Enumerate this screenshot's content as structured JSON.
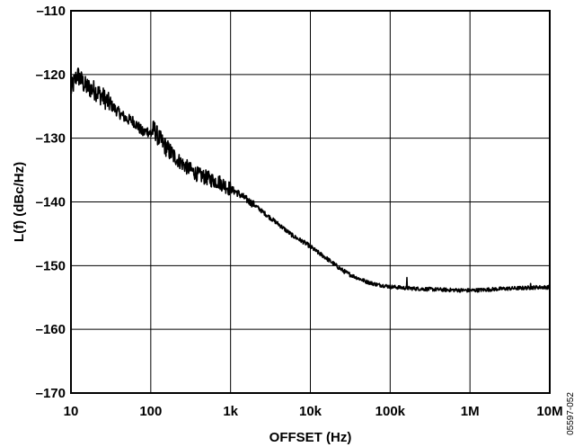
{
  "chart_data": {
    "type": "line",
    "xlabel": "OFFSET (Hz)",
    "ylabel": "L(f) (dBc/Hz)",
    "x_scale": "log",
    "xlim": [
      10,
      10000000
    ],
    "ylim": [
      -170,
      -110
    ],
    "grid": true,
    "x_ticks": [
      10,
      100,
      1000,
      10000,
      100000,
      1000000,
      10000000
    ],
    "x_tick_labels": [
      "10",
      "100",
      "1k",
      "10k",
      "100k",
      "1M",
      "10M"
    ],
    "y_ticks": [
      -170,
      -160,
      -150,
      -140,
      -130,
      -120,
      -110
    ],
    "y_tick_labels": [
      "–170",
      "–160",
      "–150",
      "–140",
      "–130",
      "–120",
      "–110"
    ],
    "figure_id": "05597-052",
    "series": [
      {
        "x": [
          10,
          12,
          15,
          20,
          25,
          30,
          40,
          50,
          60,
          70,
          80,
          90,
          100,
          110,
          120,
          130,
          150,
          170,
          200,
          250,
          300,
          400,
          500,
          600,
          700,
          800,
          900,
          1000,
          1200,
          1500,
          2000,
          2500,
          3000,
          4000,
          5000,
          6000,
          7000,
          8000,
          10000,
          12000,
          15000,
          20000,
          25000,
          30000,
          40000,
          50000,
          60000,
          70000,
          80000,
          100000,
          150000,
          200000,
          300000,
          500000,
          700000,
          1000000,
          1500000,
          2000000,
          3000000,
          5000000,
          7000000,
          10000000
        ],
        "y": [
          -122.5,
          -120.0,
          -121.8,
          -122.5,
          -123.5,
          -124.5,
          -126.0,
          -127.0,
          -127.3,
          -128.2,
          -129.2,
          -128.8,
          -129.3,
          -128.5,
          -129.5,
          -130.2,
          -131.2,
          -132.0,
          -133.0,
          -134.0,
          -134.8,
          -135.8,
          -136.2,
          -136.6,
          -136.8,
          -137.2,
          -137.6,
          -138.0,
          -138.5,
          -139.4,
          -140.5,
          -141.5,
          -142.3,
          -143.5,
          -144.5,
          -145.3,
          -145.8,
          -146.2,
          -147.0,
          -147.8,
          -148.6,
          -149.8,
          -150.7,
          -151.3,
          -152.0,
          -152.5,
          -152.8,
          -153.0,
          -153.1,
          -153.3,
          -153.5,
          -153.6,
          -153.7,
          -153.8,
          -153.85,
          -153.9,
          -153.8,
          -153.7,
          -153.6,
          -153.5,
          -153.4,
          -153.4
        ]
      }
    ]
  }
}
